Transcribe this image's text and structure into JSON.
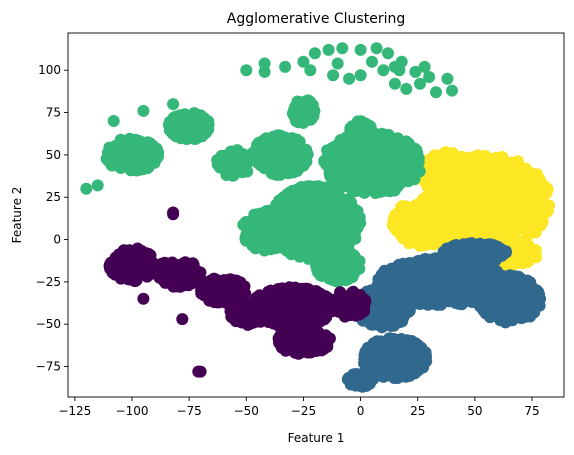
{
  "chart_data": {
    "type": "scatter",
    "title": "Agglomerative Clustering",
    "xlabel": "Feature 1",
    "ylabel": "Feature 2",
    "xlim": [
      -128,
      89
    ],
    "ylim": [
      -93,
      122
    ],
    "xticks": [
      -125,
      -100,
      -75,
      -50,
      -25,
      0,
      25,
      50,
      75
    ],
    "yticks": [
      -75,
      -50,
      -25,
      0,
      25,
      50,
      75,
      100
    ],
    "grid": false,
    "legend": "none",
    "colors": {
      "cluster_purple": "#440154",
      "cluster_blue": "#31688e",
      "cluster_green": "#35b779",
      "cluster_yellow": "#fde725"
    },
    "clusters": [
      {
        "color": "#fde725",
        "regions": [
          {
            "cx": 55,
            "cy": 22,
            "rx": 28,
            "ry": 28,
            "n": 900
          },
          {
            "cx": 38,
            "cy": 40,
            "rx": 12,
            "ry": 12,
            "n": 160
          },
          {
            "cx": 28,
            "cy": 10,
            "rx": 14,
            "ry": 14,
            "n": 180
          },
          {
            "cx": 60,
            "cy": -8,
            "rx": 18,
            "ry": 8,
            "n": 140
          }
        ]
      },
      {
        "color": "#31688e",
        "regions": [
          {
            "cx": 35,
            "cy": -25,
            "rx": 28,
            "ry": 14,
            "n": 650
          },
          {
            "cx": 65,
            "cy": -35,
            "rx": 14,
            "ry": 14,
            "n": 300
          },
          {
            "cx": 10,
            "cy": -40,
            "rx": 12,
            "ry": 12,
            "n": 250
          },
          {
            "cx": 15,
            "cy": -70,
            "rx": 14,
            "ry": 12,
            "n": 350
          },
          {
            "cx": 0,
            "cy": -83,
            "rx": 6,
            "ry": 4,
            "n": 60
          },
          {
            "cx": 50,
            "cy": -8,
            "rx": 14,
            "ry": 6,
            "n": 120
          }
        ]
      },
      {
        "color": "#35b779",
        "regions": [
          {
            "cx": 5,
            "cy": 45,
            "rx": 22,
            "ry": 18,
            "n": 500
          },
          {
            "cx": -20,
            "cy": 10,
            "rx": 20,
            "ry": 22,
            "n": 450
          },
          {
            "cx": -40,
            "cy": 5,
            "rx": 12,
            "ry": 12,
            "n": 200
          },
          {
            "cx": -35,
            "cy": 50,
            "rx": 12,
            "ry": 12,
            "n": 200
          },
          {
            "cx": -75,
            "cy": 67,
            "rx": 9,
            "ry": 8,
            "n": 220
          },
          {
            "cx": -100,
            "cy": 50,
            "rx": 12,
            "ry": 10,
            "n": 180
          },
          {
            "cx": 0,
            "cy": 65,
            "rx": 5,
            "ry": 5,
            "n": 60
          },
          {
            "cx": -25,
            "cy": 75,
            "rx": 5,
            "ry": 8,
            "n": 60
          },
          {
            "cx": -55,
            "cy": 45,
            "rx": 8,
            "ry": 8,
            "n": 80
          },
          {
            "cx": -10,
            "cy": -15,
            "rx": 10,
            "ry": 10,
            "n": 120
          }
        ]
      },
      {
        "color": "#440154",
        "regions": [
          {
            "cx": -30,
            "cy": -40,
            "rx": 18,
            "ry": 12,
            "n": 350
          },
          {
            "cx": -5,
            "cy": -38,
            "rx": 8,
            "ry": 8,
            "n": 90
          },
          {
            "cx": -25,
            "cy": -60,
            "rx": 12,
            "ry": 8,
            "n": 150
          },
          {
            "cx": -60,
            "cy": -30,
            "rx": 10,
            "ry": 8,
            "n": 130
          },
          {
            "cx": -100,
            "cy": -15,
            "rx": 10,
            "ry": 10,
            "n": 120
          },
          {
            "cx": -80,
            "cy": -20,
            "rx": 10,
            "ry": 8,
            "n": 100
          },
          {
            "cx": -50,
            "cy": -45,
            "rx": 8,
            "ry": 6,
            "n": 60
          }
        ]
      }
    ],
    "extra_points": [
      {
        "x": -82,
        "y": 16,
        "cluster": "#440154"
      },
      {
        "x": -82,
        "y": 15,
        "cluster": "#440154"
      },
      {
        "x": -70,
        "y": -78,
        "cluster": "#440154"
      },
      {
        "x": -71,
        "y": -78,
        "cluster": "#440154"
      },
      {
        "x": -78,
        "y": -47,
        "cluster": "#440154"
      },
      {
        "x": -95,
        "y": -35,
        "cluster": "#440154"
      },
      {
        "x": -120,
        "y": 30,
        "cluster": "#35b779"
      },
      {
        "x": -115,
        "y": 32,
        "cluster": "#35b779"
      },
      {
        "x": -108,
        "y": 70,
        "cluster": "#35b779"
      },
      {
        "x": -95,
        "y": 76,
        "cluster": "#35b779"
      },
      {
        "x": -82,
        "y": 80,
        "cluster": "#35b779"
      },
      {
        "x": -50,
        "y": 100,
        "cluster": "#35b779"
      },
      {
        "x": -42,
        "y": 104,
        "cluster": "#35b779"
      },
      {
        "x": -42,
        "y": 99,
        "cluster": "#35b779"
      },
      {
        "x": -33,
        "y": 102,
        "cluster": "#35b779"
      },
      {
        "x": -25,
        "y": 105,
        "cluster": "#35b779"
      },
      {
        "x": -20,
        "y": 110,
        "cluster": "#35b779"
      },
      {
        "x": -22,
        "y": 100,
        "cluster": "#35b779"
      },
      {
        "x": -14,
        "y": 112,
        "cluster": "#35b779"
      },
      {
        "x": -10,
        "y": 104,
        "cluster": "#35b779"
      },
      {
        "x": -8,
        "y": 113,
        "cluster": "#35b779"
      },
      {
        "x": -5,
        "y": 95,
        "cluster": "#35b779"
      },
      {
        "x": -12,
        "y": 97,
        "cluster": "#35b779"
      },
      {
        "x": 0,
        "y": 112,
        "cluster": "#35b779"
      },
      {
        "x": 0,
        "y": 97,
        "cluster": "#35b779"
      },
      {
        "x": 5,
        "y": 105,
        "cluster": "#35b779"
      },
      {
        "x": 7,
        "y": 113,
        "cluster": "#35b779"
      },
      {
        "x": 10,
        "y": 100,
        "cluster": "#35b779"
      },
      {
        "x": 12,
        "y": 110,
        "cluster": "#35b779"
      },
      {
        "x": 15,
        "y": 102,
        "cluster": "#35b779"
      },
      {
        "x": 15,
        "y": 92,
        "cluster": "#35b779"
      },
      {
        "x": 17,
        "y": 100,
        "cluster": "#35b779"
      },
      {
        "x": 18,
        "y": 105,
        "cluster": "#35b779"
      },
      {
        "x": 20,
        "y": 89,
        "cluster": "#35b779"
      },
      {
        "x": 24,
        "y": 99,
        "cluster": "#35b779"
      },
      {
        "x": 26,
        "y": 92,
        "cluster": "#35b779"
      },
      {
        "x": 28,
        "y": 102,
        "cluster": "#35b779"
      },
      {
        "x": 30,
        "y": 96,
        "cluster": "#35b779"
      },
      {
        "x": 33,
        "y": 87,
        "cluster": "#35b779"
      },
      {
        "x": 38,
        "y": 95,
        "cluster": "#35b779"
      },
      {
        "x": 40,
        "y": 88,
        "cluster": "#35b779"
      }
    ]
  }
}
